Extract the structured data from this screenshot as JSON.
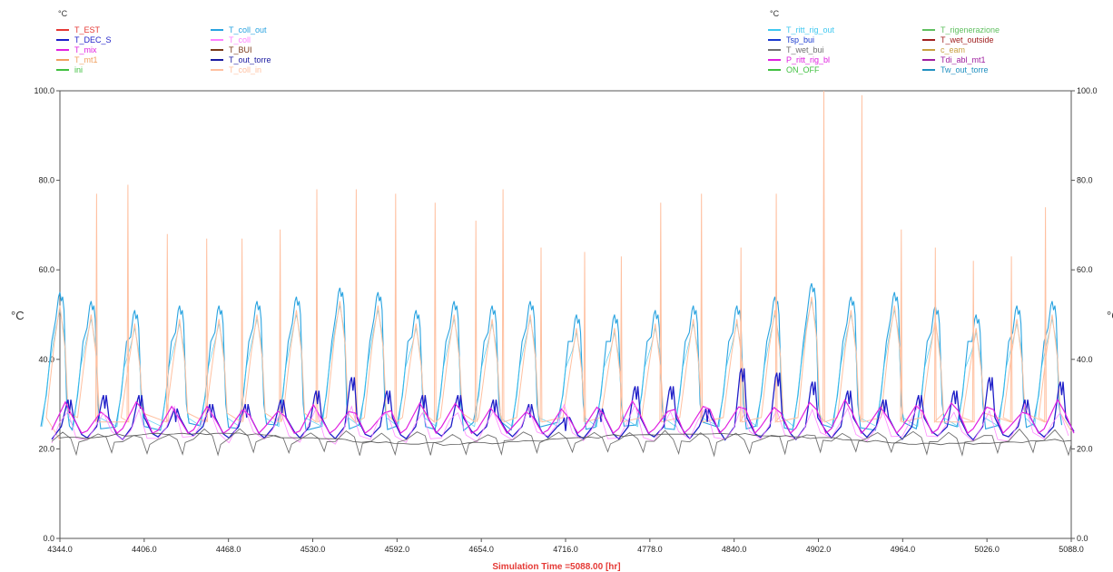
{
  "chart_data": {
    "type": "line",
    "xlabel": "Simulation Time =5088.00 [hr]",
    "ylabel_left": "°C",
    "ylabel_right": "°C",
    "xlim": [
      4344.0,
      5088.0
    ],
    "ylim": [
      0.0,
      100.0
    ],
    "x_ticks": [
      "4344.0",
      "4406.0",
      "4468.0",
      "4530.0",
      "4592.0",
      "4654.0",
      "4716.0",
      "4778.0",
      "4840.0",
      "4902.0",
      "4964.0",
      "5026.0",
      "5088.0"
    ],
    "y_ticks": [
      "0.0",
      "20.0",
      "40.0",
      "60.0",
      "80.0",
      "100.0"
    ],
    "grid": false,
    "legend_left": {
      "unit": "°C",
      "entries": [
        {
          "name": "T_EST",
          "color": "#e53935"
        },
        {
          "name": "T_DEC_S",
          "color": "#1e1ec8"
        },
        {
          "name": "T_mix",
          "color": "#e020e0"
        },
        {
          "name": "T_mt1",
          "color": "#f0a060"
        },
        {
          "name": "ini",
          "color": "#40c040"
        },
        {
          "name": "T_coll_out",
          "color": "#29a3e0"
        },
        {
          "name": "T_coll",
          "color": "#ff80ff"
        },
        {
          "name": "T_BUI",
          "color": "#7a3a1a"
        },
        {
          "name": "T_out_torre",
          "color": "#1a1aa0"
        },
        {
          "name": "T_coll_in",
          "color": "#ffc0a0"
        }
      ]
    },
    "legend_right": {
      "unit": "°C",
      "entries": [
        {
          "name": "T_ritt_rig_out",
          "color": "#40c8f0"
        },
        {
          "name": "Tsp_bui",
          "color": "#1a3ad0"
        },
        {
          "name": "T_wet_bui",
          "color": "#707070"
        },
        {
          "name": "P_ritt_rig_bl",
          "color": "#e020e0"
        },
        {
          "name": "ON_OFF",
          "color": "#40c040"
        },
        {
          "name": "T_rigenerazione",
          "color": "#60c060"
        },
        {
          "name": "T_wet_outside",
          "color": "#a02020"
        },
        {
          "name": "c_eam",
          "color": "#c8a040"
        },
        {
          "name": "Tdi_abl_mt1",
          "color": "#a020a0"
        },
        {
          "name": "Tw_out_torre",
          "color": "#2090c0"
        }
      ]
    },
    "series": [
      {
        "name": "T_coll_out",
        "color": "#29a3e0",
        "x": [
          4344,
          4367,
          4399,
          4432,
          4461,
          4489,
          4518,
          4550,
          4578,
          4606,
          4634,
          4662,
          4690,
          4724,
          4752,
          4782,
          4810,
          4842,
          4870,
          4897,
          4926,
          4958,
          4988,
          5018,
          5048,
          5074
        ],
        "peaks": [
          55,
          53,
          51,
          52,
          52,
          53,
          54,
          56,
          55,
          51,
          53,
          52,
          53,
          50,
          50,
          51,
          52,
          52,
          54,
          57,
          54,
          55,
          52,
          50,
          52,
          53
        ]
      },
      {
        "name": "T_coll_in",
        "color": "#ffc0a0",
        "x": [
          4371,
          4394,
          4423,
          4452,
          4478,
          4506,
          4533,
          4562,
          4591,
          4620,
          4650,
          4670,
          4698,
          4730,
          4757,
          4786,
          4816,
          4845,
          4871,
          4906,
          4934,
          4963,
          4988,
          5016,
          5044,
          5069
        ],
        "peaks": [
          77,
          79,
          68,
          67,
          67,
          69,
          78,
          78,
          77,
          75,
          71,
          78,
          65,
          64,
          63,
          75,
          77,
          65,
          77,
          100,
          99,
          69,
          65,
          62,
          63,
          74
        ]
      },
      {
        "name": "T_DEC_S",
        "color": "#1e1ec8",
        "peaks": [
          31,
          32,
          32,
          29,
          30,
          30,
          31,
          33,
          36,
          33,
          32,
          32,
          31,
          30,
          27,
          29,
          34,
          34,
          29,
          38,
          37,
          35,
          33,
          31,
          32,
          33,
          36,
          31,
          35
        ]
      },
      {
        "name": "T_mix",
        "color": "#e020e0"
      },
      {
        "name": "T_wet_bui",
        "color": "#707070"
      },
      {
        "name": "T_coll",
        "color": "#ff80ff"
      }
    ]
  }
}
